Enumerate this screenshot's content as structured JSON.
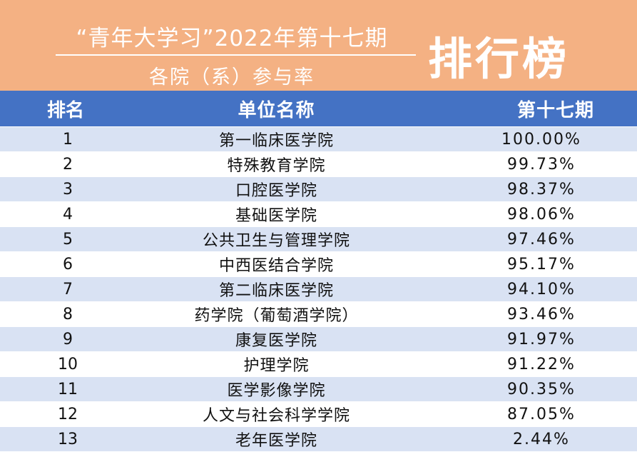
{
  "header": {
    "title": "“青年大学习”2022年第十七期",
    "subtitle": "各院（系）参与率",
    "big_label": "排行榜"
  },
  "table": {
    "columns": [
      "排名",
      "单位名称",
      "第十七期"
    ],
    "rows": [
      {
        "rank": "1",
        "name": "第一临床医学院",
        "rate": "100.00%"
      },
      {
        "rank": "2",
        "name": "特殊教育学院",
        "rate": "99.73%"
      },
      {
        "rank": "3",
        "name": "口腔医学院",
        "rate": "98.37%"
      },
      {
        "rank": "4",
        "name": "基础医学院",
        "rate": "98.06%"
      },
      {
        "rank": "5",
        "name": "公共卫生与管理学院",
        "rate": "97.46%"
      },
      {
        "rank": "6",
        "name": "中西医结合学院",
        "rate": "95.17%"
      },
      {
        "rank": "7",
        "name": "第二临床医学院",
        "rate": "94.10%"
      },
      {
        "rank": "8",
        "name": "药学院（葡萄酒学院）",
        "rate": "93.46%"
      },
      {
        "rank": "9",
        "name": "康复医学院",
        "rate": "91.97%"
      },
      {
        "rank": "10",
        "name": "护理学院",
        "rate": "91.22%"
      },
      {
        "rank": "11",
        "name": "医学影像学院",
        "rate": "90.35%"
      },
      {
        "rank": "12",
        "name": "人文与社会科学学院",
        "rate": "87.05%"
      },
      {
        "rank": "13",
        "name": "老年医学院",
        "rate": "2.44%"
      }
    ]
  },
  "colors": {
    "banner": "#f4b183",
    "header_row": "#4472c4",
    "stripe": "#d9e2f3"
  }
}
